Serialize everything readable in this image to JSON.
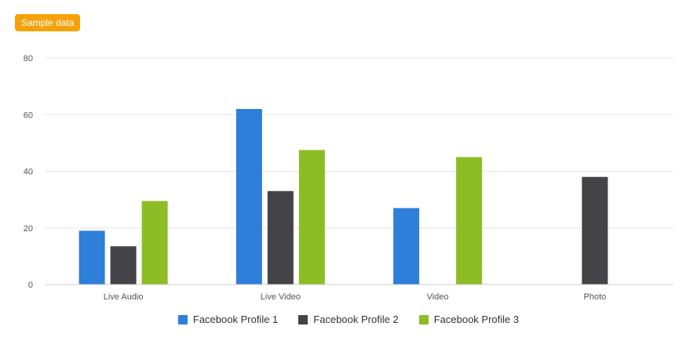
{
  "badge": {
    "label": "Sample data",
    "color": "#f5a20a"
  },
  "chart_data": {
    "type": "bar",
    "categories": [
      "Live Audio",
      "Live Video",
      "Video",
      "Photo"
    ],
    "series": [
      {
        "name": "Facebook Profile 1",
        "color": "#2e7fd9",
        "values": [
          19,
          62,
          27,
          null
        ]
      },
      {
        "name": "Facebook Profile 2",
        "color": "#434348",
        "values": [
          13.5,
          33,
          null,
          38
        ]
      },
      {
        "name": "Facebook Profile 3",
        "color": "#8dbd25",
        "values": [
          29.5,
          47.5,
          45,
          null
        ]
      }
    ],
    "yticks": [
      0,
      20,
      40,
      60,
      80
    ],
    "ylim": [
      0,
      80
    ],
    "grid": true,
    "legend_position": "bottom-center",
    "title": "",
    "xlabel": "",
    "ylabel": ""
  }
}
